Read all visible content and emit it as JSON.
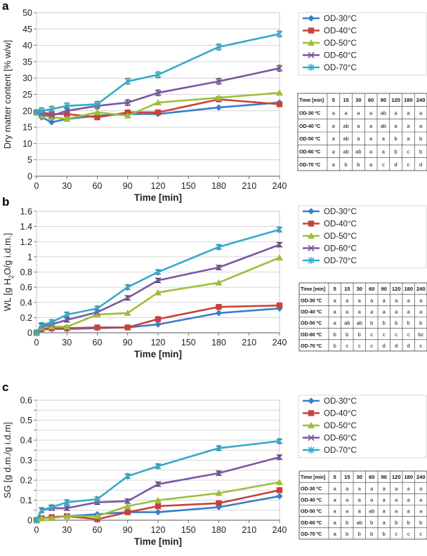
{
  "series_colors": {
    "OD-30°C": "#3a7dc9",
    "OD-40°C": "#c8423c",
    "OD-50°C": "#9bbf3a",
    "OD-60°C": "#7a57a3",
    "OD-70°C": "#33abc9"
  },
  "chart_data": [
    {
      "panel_label": "a",
      "type": "line",
      "title": "",
      "xlabel": "Time [min]",
      "ylabel": "Dry matter content [% w/w]",
      "x": [
        0,
        5,
        15,
        30,
        60,
        90,
        120,
        180,
        240
      ],
      "xticks": [
        0,
        30,
        60,
        90,
        120,
        150,
        180,
        210,
        240
      ],
      "xlim": [
        0,
        240
      ],
      "yticks": [
        0,
        5,
        10,
        15,
        20,
        25,
        30,
        35,
        40,
        45,
        50
      ],
      "ytick_labels": [
        "0",
        "5",
        "10",
        "15",
        "20",
        "25",
        "30",
        "35",
        "40",
        "45",
        "50"
      ],
      "ylim": [
        0,
        50
      ],
      "series": [
        {
          "name": "OD-30°C",
          "values": [
            19.5,
            18.0,
            16.5,
            17.5,
            18.5,
            19.0,
            19.0,
            21.0,
            22.5
          ]
        },
        {
          "name": "OD-40°C",
          "values": [
            19.5,
            19.5,
            19.0,
            19.0,
            18.0,
            19.5,
            19.5,
            23.5,
            22.0
          ]
        },
        {
          "name": "OD-50°C",
          "values": [
            19.5,
            18.5,
            18.0,
            17.5,
            19.5,
            18.5,
            22.5,
            24.0,
            25.5
          ]
        },
        {
          "name": "OD-60°C",
          "values": [
            19.5,
            19.0,
            18.5,
            20.0,
            21.5,
            22.5,
            25.5,
            29.0,
            33.0
          ]
        },
        {
          "name": "OD-70°C",
          "values": [
            19.5,
            20.0,
            20.5,
            21.5,
            22.0,
            29.0,
            31.0,
            39.5,
            43.5
          ]
        }
      ],
      "legend": [
        "OD-30°C",
        "OD-40°C",
        "OD-50°C",
        "OD-60°C",
        "OD-70°C"
      ],
      "table": {
        "header": [
          "Time [min]",
          "5",
          "15",
          "30",
          "60",
          "90",
          "120",
          "180",
          "240"
        ],
        "rows": [
          [
            "OD-30 ºC",
            "a",
            "a",
            "a",
            "a",
            "ab",
            "a",
            "a",
            "a"
          ],
          [
            "OD-40 ºC",
            "a",
            "ab",
            "a",
            "a",
            "ab",
            "a",
            "a",
            "a"
          ],
          [
            "OD-50 ºC",
            "a",
            "ab",
            "a",
            "a",
            "a",
            "b",
            "a",
            "b"
          ],
          [
            "OD-60 ºC",
            "a",
            "ab",
            "ab",
            "a",
            "a",
            "b",
            "c",
            "b"
          ],
          [
            "OD-70 ºC",
            "a",
            "b",
            "b",
            "a",
            "c",
            "d",
            "c",
            "d"
          ]
        ]
      }
    },
    {
      "panel_label": "b",
      "type": "line",
      "title": "",
      "xlabel": "Time [min]",
      "ylabel_main": "WL [g H",
      "ylabel_sub": "2",
      "ylabel_rest": "O/g i.d.m.]",
      "x": [
        0,
        5,
        15,
        30,
        60,
        90,
        120,
        180,
        240
      ],
      "xticks": [
        0,
        30,
        60,
        90,
        120,
        150,
        180,
        210,
        240
      ],
      "xlim": [
        0,
        240
      ],
      "yticks": [
        0,
        0.2,
        0.4,
        0.6,
        0.8,
        1.0,
        1.2,
        1.4,
        1.6
      ],
      "ytick_labels": [
        "0",
        "0.2",
        "0.4",
        "0.6",
        "0.8",
        "1",
        "1.2",
        "1.4",
        "1.6"
      ],
      "ylim": [
        0,
        1.6
      ],
      "series": [
        {
          "name": "OD-30°C",
          "values": [
            0,
            0.04,
            0.05,
            0.05,
            0.06,
            0.07,
            0.11,
            0.26,
            0.32
          ]
        },
        {
          "name": "OD-40°C",
          "values": [
            0,
            0.05,
            0.06,
            0.06,
            0.07,
            0.07,
            0.18,
            0.34,
            0.36
          ]
        },
        {
          "name": "OD-50°C",
          "values": [
            0,
            0.07,
            0.08,
            0.08,
            0.24,
            0.26,
            0.53,
            0.66,
            0.99
          ]
        },
        {
          "name": "OD-60°C",
          "values": [
            0,
            0.09,
            0.11,
            0.17,
            0.27,
            0.46,
            0.69,
            0.86,
            1.16
          ]
        },
        {
          "name": "OD-70°C",
          "values": [
            0,
            0.1,
            0.14,
            0.24,
            0.32,
            0.6,
            0.8,
            1.13,
            1.36
          ]
        }
      ],
      "legend": [
        "OD-30°C",
        "OD-40°C",
        "OD-50°C",
        "OD-60°C",
        "OD-70°C"
      ],
      "table": {
        "header": [
          "Time [min]",
          "5",
          "15",
          "30",
          "60",
          "90",
          "120",
          "180",
          "240"
        ],
        "rows": [
          [
            "OD-30 ºC",
            "a",
            "a",
            "a",
            "a",
            "a",
            "a",
            "a",
            "a"
          ],
          [
            "OD-40 ºC",
            "a",
            "a",
            "a",
            "a",
            "a",
            "a",
            "a",
            "a"
          ],
          [
            "OD-50 ºC",
            "a",
            "ab",
            "ab",
            "b",
            "b",
            "b",
            "b",
            "b"
          ],
          [
            "OD-60 ºC",
            "b",
            "b",
            "b",
            "c",
            "c",
            "c",
            "c",
            "bc"
          ],
          [
            "OD-70 ºC",
            "b",
            "c",
            "c",
            "c",
            "d",
            "d",
            "d",
            "c"
          ]
        ]
      }
    },
    {
      "panel_label": "c",
      "type": "line",
      "title": "",
      "xlabel": "Time [min]",
      "ylabel": "SG [g d.m./g i.d.m]",
      "x": [
        0,
        5,
        15,
        30,
        60,
        90,
        120,
        180,
        240
      ],
      "xticks": [
        0,
        30,
        60,
        90,
        120,
        150,
        180,
        210,
        240
      ],
      "xlim": [
        0,
        240
      ],
      "yticks": [
        0,
        0.05,
        0.1,
        0.15,
        0.2,
        0.25,
        0.3,
        0.35,
        0.4,
        0.45,
        0.5,
        0.55,
        0.6
      ],
      "ytick_labels": [
        "0",
        "",
        "0.1",
        "",
        "0.2",
        "",
        "0.3",
        "",
        "0.4",
        "",
        "0.5",
        "",
        "0.6"
      ],
      "ylim": [
        0,
        0.6
      ],
      "series": [
        {
          "name": "OD-30°C",
          "values": [
            0,
            0.01,
            0.015,
            0.02,
            0.03,
            0.04,
            0.04,
            0.065,
            0.12
          ]
        },
        {
          "name": "OD-40°C",
          "values": [
            0,
            0.01,
            0.015,
            0.02,
            0.005,
            0.04,
            0.07,
            0.085,
            0.15
          ]
        },
        {
          "name": "OD-50°C",
          "values": [
            0,
            0.01,
            0.01,
            0.02,
            0.02,
            0.07,
            0.1,
            0.135,
            0.19
          ]
        },
        {
          "name": "OD-60°C",
          "values": [
            0,
            0.05,
            0.06,
            0.06,
            0.09,
            0.095,
            0.18,
            0.235,
            0.315
          ]
        },
        {
          "name": "OD-70°C",
          "values": [
            0,
            0.05,
            0.065,
            0.09,
            0.105,
            0.22,
            0.27,
            0.36,
            0.395
          ]
        }
      ],
      "legend": [
        "OD-30°C",
        "OD-40°C",
        "OD-50°C",
        "OD-60°C",
        "OD-70°C"
      ],
      "table": {
        "header": [
          "Time [min]",
          "5",
          "15",
          "30",
          "60",
          "90",
          "120",
          "180",
          "240"
        ],
        "rows": [
          [
            "OD-30 ºC",
            "a",
            "a",
            "a",
            "a",
            "a",
            "a",
            "a",
            "a"
          ],
          [
            "OD-40 ºC",
            "a",
            "a",
            "a",
            "a",
            "a",
            "a",
            "a",
            "a"
          ],
          [
            "OD-50 ºC",
            "a",
            "a",
            "a",
            "ab",
            "a",
            "a",
            "a",
            "a"
          ],
          [
            "OD-60 ºC",
            "a",
            "b",
            "ab",
            "b",
            "a",
            "b",
            "b",
            "b"
          ],
          [
            "OD-70 ºC",
            "a",
            "b",
            "b",
            "b",
            "b",
            "c",
            "c",
            "c"
          ]
        ]
      }
    }
  ]
}
